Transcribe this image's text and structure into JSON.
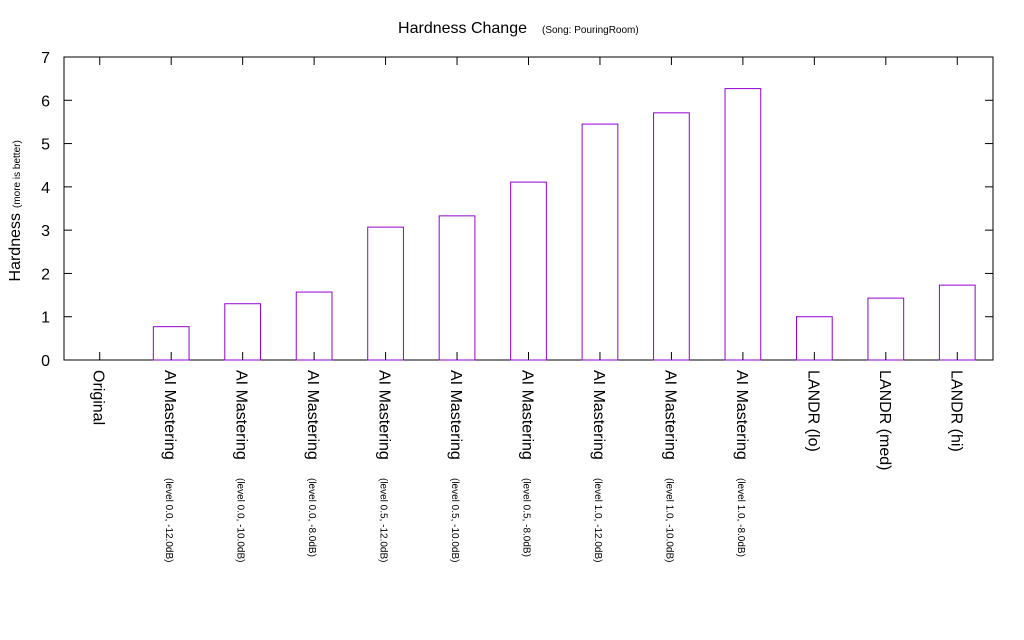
{
  "chart_data": {
    "type": "bar",
    "title": "Hardness Change",
    "subtitle": "(Song: PouringRoom)",
    "xlabel": "",
    "ylabel": "Hardness",
    "ylabel_note": "(more is better)",
    "ylim": [
      0,
      7
    ],
    "yticks": [
      0,
      1,
      2,
      3,
      4,
      5,
      6,
      7
    ],
    "grid": false,
    "legend": "none",
    "bar_color": "#9400d3",
    "categories": [
      {
        "label": "Original",
        "note": ""
      },
      {
        "label": "AI Mastering",
        "note": "(level 0.0, -12.0dB)"
      },
      {
        "label": "AI Mastering",
        "note": "(level 0.0, -10.0dB)"
      },
      {
        "label": "AI Mastering",
        "note": "(level 0.0, -8.0dB)"
      },
      {
        "label": "AI Mastering",
        "note": "(level 0.5, -12.0dB)"
      },
      {
        "label": "AI Mastering",
        "note": "(level 0.5, -10.0dB)"
      },
      {
        "label": "AI Mastering",
        "note": "(level 0.5, -8.0dB)"
      },
      {
        "label": "AI Mastering",
        "note": "(level 1.0, -12.0dB)"
      },
      {
        "label": "AI Mastering",
        "note": "(level 1.0, -10.0dB)"
      },
      {
        "label": "AI Mastering",
        "note": "(level 1.0, -8.0dB)"
      },
      {
        "label": "LANDR (lo)",
        "note": ""
      },
      {
        "label": "LANDR (med)",
        "note": ""
      },
      {
        "label": "LANDR (hi)",
        "note": ""
      }
    ],
    "values": [
      0,
      0.77,
      1.3,
      1.57,
      3.07,
      3.33,
      4.11,
      5.45,
      5.71,
      6.27,
      1.0,
      1.43,
      1.73
    ]
  }
}
